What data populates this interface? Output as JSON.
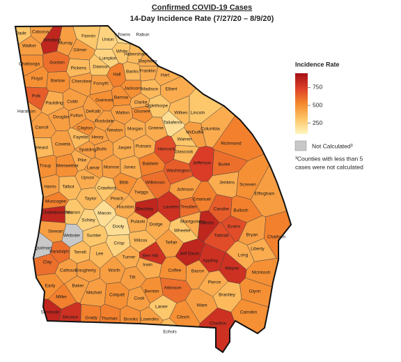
{
  "title": "Confirmed COVID-19 Cases",
  "subtitle": "14-Day Incidence Rate (7/27/20 – 8/9/20)",
  "legend": {
    "title": "Incidence Rate",
    "clim": [
      100,
      950
    ],
    "ticks": [
      250,
      500,
      750
    ],
    "colors": [
      "#fff6bf",
      "#fdc466",
      "#f5892e",
      "#dd3f28",
      "#a50f15"
    ],
    "na_label": "Not Calculated³",
    "na_color": "#c8c8c8",
    "note": [
      "³Counties with less than 5",
      "cases were not calculated"
    ]
  },
  "counties": [
    {
      "name": "Dade",
      "rate": 300
    },
    {
      "name": "Catoosa",
      "rate": 450
    },
    {
      "name": "Whitfield",
      "rate": 850
    },
    {
      "name": "Murray",
      "rate": 450
    },
    {
      "name": "Fannin",
      "rate": 300
    },
    {
      "name": "Union",
      "rate": 250
    },
    {
      "name": "Towns",
      "rate": 200
    },
    {
      "name": "Rabun",
      "rate": 250
    },
    {
      "name": "Walker",
      "rate": 450
    },
    {
      "name": "Gilmer",
      "rate": 450
    },
    {
      "name": "White",
      "rate": 300
    },
    {
      "name": "Habersham",
      "rate": 350
    },
    {
      "name": "Stephens",
      "rate": 400
    },
    {
      "name": "Chattooga",
      "rate": 500
    },
    {
      "name": "Gordon",
      "rate": 600
    },
    {
      "name": "Pickens",
      "rate": 350
    },
    {
      "name": "Dawson",
      "rate": 300
    },
    {
      "name": "Lumpkin",
      "rate": 250
    },
    {
      "name": "Hall",
      "rate": 550
    },
    {
      "name": "Banks",
      "rate": 350
    },
    {
      "name": "Franklin",
      "rate": 400
    },
    {
      "name": "Hart",
      "rate": 400
    },
    {
      "name": "Floyd",
      "rate": 500
    },
    {
      "name": "Bartow",
      "rate": 500
    },
    {
      "name": "Cherokee",
      "rate": 450
    },
    {
      "name": "Forsyth",
      "rate": 450
    },
    {
      "name": "Jackson",
      "rate": 500
    },
    {
      "name": "Madison",
      "rate": 350
    },
    {
      "name": "Elbert",
      "rate": 400
    },
    {
      "name": "Polk",
      "rate": 650
    },
    {
      "name": "Paulding",
      "rate": 400
    },
    {
      "name": "Cobb",
      "rate": 450
    },
    {
      "name": "Gwinnett",
      "rate": 500
    },
    {
      "name": "Barrow",
      "rate": 500
    },
    {
      "name": "Clarke",
      "rate": 400
    },
    {
      "name": "Oglethorpe",
      "rate": 300
    },
    {
      "name": "Haralson",
      "rate": 450
    },
    {
      "name": "Douglas",
      "rate": 450
    },
    {
      "name": "Fulton",
      "rate": 450
    },
    {
      "name": "DeKalb",
      "rate": 450
    },
    {
      "name": "Walton",
      "rate": 450
    },
    {
      "name": "Oconee",
      "rate": 500
    },
    {
      "name": "Wilkes",
      "rate": 350
    },
    {
      "name": "Lincoln",
      "rate": 300
    },
    {
      "name": "Carroll",
      "rate": 450
    },
    {
      "name": "Clayton",
      "rate": 500
    },
    {
      "name": "Rockdale",
      "rate": 450
    },
    {
      "name": "Newton",
      "rate": 450
    },
    {
      "name": "Morgan",
      "rate": 400
    },
    {
      "name": "Greene",
      "rate": 400
    },
    {
      "name": "Taliaferro",
      "rate": 200
    },
    {
      "name": "McDuffie",
      "rate": 450
    },
    {
      "name": "Columbia",
      "rate": 400
    },
    {
      "name": "Fayette",
      "rate": 350
    },
    {
      "name": "Henry",
      "rate": 450
    },
    {
      "name": "Warren",
      "rate": 300
    },
    {
      "name": "Richmond",
      "rate": 550
    },
    {
      "name": "Heard",
      "rate": 350
    },
    {
      "name": "Coweta",
      "rate": 450
    },
    {
      "name": "Spalding",
      "rate": 450
    },
    {
      "name": "Butts",
      "rate": 450
    },
    {
      "name": "Jasper",
      "rate": 400
    },
    {
      "name": "Putnam",
      "rate": 400
    },
    {
      "name": "Hancock",
      "rate": 700
    },
    {
      "name": "Glascock",
      "rate": 350
    },
    {
      "name": "Jefferson",
      "rate": 750
    },
    {
      "name": "Burke",
      "rate": 600
    },
    {
      "name": "Troup",
      "rate": 500
    },
    {
      "name": "Meriwether",
      "rate": 500
    },
    {
      "name": "Pike",
      "rate": 400
    },
    {
      "name": "Lamar",
      "rate": 450
    },
    {
      "name": "Monroe",
      "rate": 450
    },
    {
      "name": "Jones",
      "rate": 400
    },
    {
      "name": "Baldwin",
      "rate": 550
    },
    {
      "name": "Washington",
      "rate": 650
    },
    {
      "name": "Harris",
      "rate": 450
    },
    {
      "name": "Talbot",
      "rate": 350
    },
    {
      "name": "Upson",
      "rate": 400
    },
    {
      "name": "Crawford",
      "rate": 300
    },
    {
      "name": "Bibb",
      "rate": 500
    },
    {
      "name": "Wilkinson",
      "rate": 600
    },
    {
      "name": "Johnson",
      "rate": 450
    },
    {
      "name": "Jenkins",
      "rate": 400
    },
    {
      "name": "Screven",
      "rate": 500
    },
    {
      "name": "Twiggs",
      "rate": 450
    },
    {
      "name": "Emanuel",
      "rate": 550
    },
    {
      "name": "Muscogee",
      "rate": 550
    },
    {
      "name": "Taylor",
      "rate": 350
    },
    {
      "name": "Peach",
      "rate": 400
    },
    {
      "name": "Effingham",
      "rate": 450
    },
    {
      "name": "Chattahoochee",
      "rate": 850
    },
    {
      "name": "Marion",
      "rate": 300
    },
    {
      "name": "Macon",
      "rate": 200
    },
    {
      "name": "Houston",
      "rate": 400
    },
    {
      "name": "Bleckley",
      "rate": 850
    },
    {
      "name": "Laurens",
      "rate": 800
    },
    {
      "name": "Treutlen",
      "rate": 600
    },
    {
      "name": "Candler",
      "rate": 650
    },
    {
      "name": "Bulloch",
      "rate": 550
    },
    {
      "name": "Schley",
      "rate": 250
    },
    {
      "name": "Stewart",
      "rate": 450
    },
    {
      "name": "Webster",
      "rate": null
    },
    {
      "name": "Sumter",
      "rate": 300
    },
    {
      "name": "Dooly",
      "rate": 200
    },
    {
      "name": "Pulaski",
      "rate": 400
    },
    {
      "name": "Dodge",
      "rate": 400
    },
    {
      "name": "Montgomery",
      "rate": 400
    },
    {
      "name": "Wheeler",
      "rate": 300
    },
    {
      "name": "Toombs",
      "rate": 850
    },
    {
      "name": "Evans",
      "rate": 700
    },
    {
      "name": "Bryan",
      "rate": 450
    },
    {
      "name": "Chatham",
      "rate": 550
    },
    {
      "name": "Tattnall",
      "rate": 700
    },
    {
      "name": "Quitman",
      "rate": null
    },
    {
      "name": "Crisp",
      "rate": 250
    },
    {
      "name": "Wilcox",
      "rate": 350
    },
    {
      "name": "Telfair",
      "rate": 450
    },
    {
      "name": "Liberty",
      "rate": 400
    },
    {
      "name": "Long",
      "rate": 400
    },
    {
      "name": "Randolph",
      "rate": 600
    },
    {
      "name": "Terrell",
      "rate": 350
    },
    {
      "name": "Lee",
      "rate": 350
    },
    {
      "name": "Turner",
      "rate": 400
    },
    {
      "name": "Ben Hill",
      "rate": 800
    },
    {
      "name": "Jeff Davis",
      "rate": 850
    },
    {
      "name": "Appling",
      "rate": 800
    },
    {
      "name": "Irwin",
      "rate": 400
    },
    {
      "name": "Clay",
      "rate": 600
    },
    {
      "name": "Calhoun",
      "rate": 450
    },
    {
      "name": "Dougherty",
      "rate": 450
    },
    {
      "name": "Worth",
      "rate": 450
    },
    {
      "name": "Coffee",
      "rate": 500
    },
    {
      "name": "Bacon",
      "rate": 450
    },
    {
      "name": "Wayne",
      "rate": 800
    },
    {
      "name": "McIntosh",
      "rate": 500
    },
    {
      "name": "Tift",
      "rate": 450
    },
    {
      "name": "Early",
      "rate": 500
    },
    {
      "name": "Baker",
      "rate": 450
    },
    {
      "name": "Berrien",
      "rate": 500
    },
    {
      "name": "Pierce",
      "rate": 400
    },
    {
      "name": "Mitchell",
      "rate": 450
    },
    {
      "name": "Colquitt",
      "rate": 500
    },
    {
      "name": "Atkinson",
      "rate": 600
    },
    {
      "name": "Glynn",
      "rate": 500
    },
    {
      "name": "Miller",
      "rate": 550
    },
    {
      "name": "Cook",
      "rate": 450
    },
    {
      "name": "Brantley",
      "rate": 350
    },
    {
      "name": "Lanier",
      "rate": 300
    },
    {
      "name": "Ware",
      "rate": 450
    },
    {
      "name": "Clinch",
      "rate": 500
    },
    {
      "name": "Seminole",
      "rate": 850
    },
    {
      "name": "Decatur",
      "rate": 800
    },
    {
      "name": "Grady",
      "rate": 550
    },
    {
      "name": "Thomas",
      "rate": 550
    },
    {
      "name": "Brooks",
      "rate": 500
    },
    {
      "name": "Lowndes",
      "rate": 450
    },
    {
      "name": "Camden",
      "rate": 500
    },
    {
      "name": "Echols",
      "rate": 350
    },
    {
      "name": "Charlton",
      "rate": 800
    }
  ]
}
